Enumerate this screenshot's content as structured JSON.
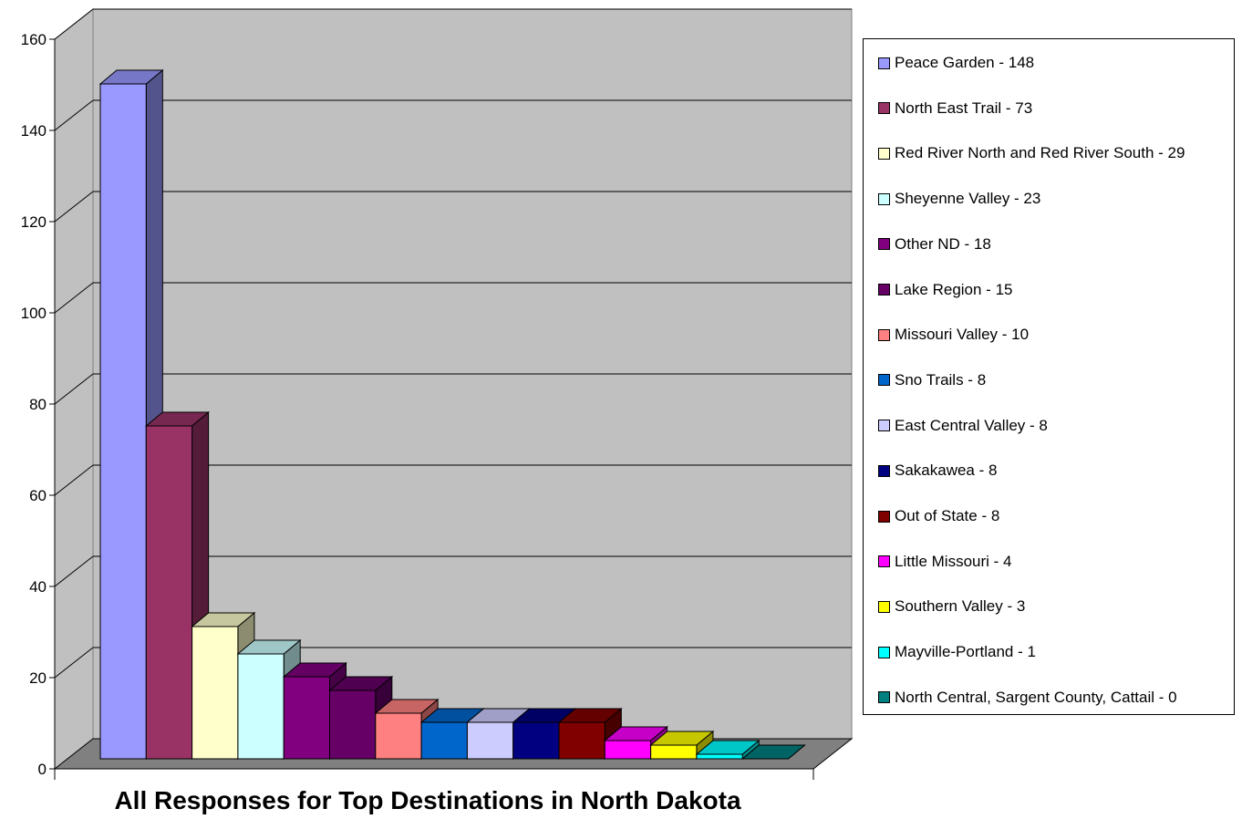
{
  "chart_data": {
    "type": "bar",
    "title": "All Responses for Top Destinations in North Dakota",
    "xlabel": "",
    "ylabel": "",
    "ylim": [
      0,
      160
    ],
    "yticks": [
      0,
      20,
      40,
      60,
      80,
      100,
      120,
      140,
      160
    ],
    "grid": true,
    "legend_position": "right",
    "three_d": true,
    "plot_background": "#c0c0c0",
    "floor_color": "#808080",
    "categories": [
      "Peace Garden",
      "North East Trail",
      "Red River North and Red River South",
      "Sheyenne Valley",
      "Other ND",
      "Lake Region",
      "Missouri Valley",
      "Sno Trails",
      "East Central Valley",
      "Sakakawea",
      "Out of State",
      "Little Missouri",
      "Southern Valley",
      "Mayville-Portland",
      "North Central, Sargent County, Cattail"
    ],
    "values": [
      148,
      73,
      29,
      23,
      18,
      15,
      10,
      8,
      8,
      8,
      8,
      4,
      3,
      1,
      0
    ],
    "colors": [
      "#9999ff",
      "#993366",
      "#ffffcc",
      "#ccffff",
      "#800080",
      "#660066",
      "#ff8080",
      "#0066cc",
      "#ccccff",
      "#000080",
      "#800000",
      "#ff00ff",
      "#ffff00",
      "#00ffff",
      "#008080"
    ],
    "legend_entries": [
      "Peace Garden - 148",
      "North East Trail - 73",
      "Red River North and Red River South - 29",
      "Sheyenne Valley - 23",
      "Other ND - 18",
      "Lake Region - 15",
      "Missouri Valley - 10",
      "Sno Trails - 8",
      "East Central Valley - 8",
      "Sakakawea - 8",
      "Out of State - 8",
      "Little Missouri - 4",
      "Southern Valley - 3",
      "Mayville-Portland - 1",
      "North Central, Sargent County, Cattail - 0"
    ]
  }
}
